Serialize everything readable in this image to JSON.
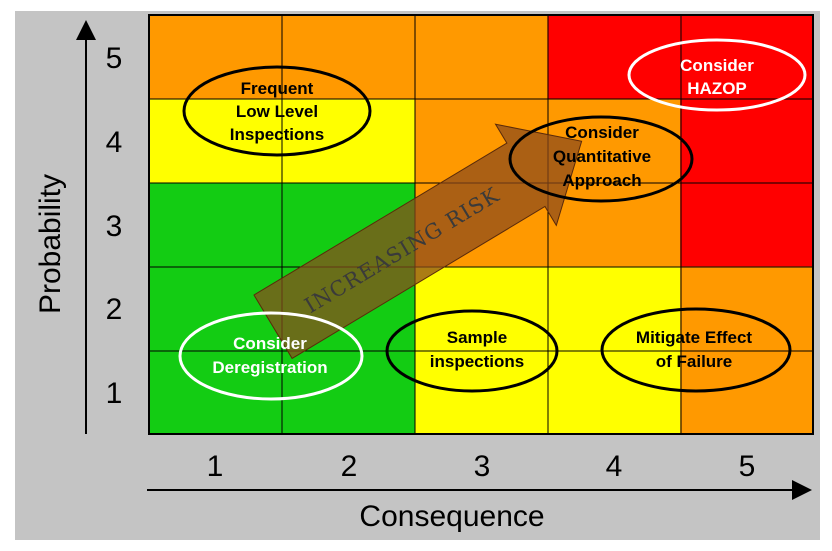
{
  "axes": {
    "y_title": "Probability",
    "x_title": "Consequence",
    "y_ticks": [
      "5",
      "4",
      "3",
      "2",
      "1"
    ],
    "x_ticks": [
      "1",
      "2",
      "3",
      "4",
      "5"
    ]
  },
  "grid": {
    "rows_top_to_bottom": [
      [
        "orange",
        "orange",
        "orange",
        "red",
        "red"
      ],
      [
        "yellow",
        "yellow",
        "orange",
        "orange",
        "red"
      ],
      [
        "green",
        "green",
        "orange",
        "orange",
        "red"
      ],
      [
        "green",
        "green",
        "yellow",
        "yellow",
        "orange"
      ],
      [
        "green",
        "green",
        "yellow",
        "yellow",
        "orange"
      ]
    ],
    "colors": {
      "green": "#13cc13",
      "yellow": "#ffff00",
      "orange": "#ff9900",
      "red": "#ff0000",
      "panel": "#c4c4c4",
      "line": "#000000"
    }
  },
  "arrow": {
    "label": "INCREASING RISK",
    "fill": "#8b4a1c"
  },
  "zones": {
    "frequent": {
      "line1": "Frequent",
      "line2": "Low Level",
      "line3": "Inspections"
    },
    "hazop": {
      "line1": "Consider",
      "line2": "HAZOP"
    },
    "quantitative": {
      "line1": "Consider",
      "line2": "Quantitative",
      "line3": "Approach"
    },
    "deregistration": {
      "line1": "Consider",
      "line2": "Deregistration"
    },
    "sample": {
      "line1": "Sample",
      "line2": "inspections"
    },
    "mitigate": {
      "line1": "Mitigate Effect",
      "line2": "of Failure"
    }
  }
}
